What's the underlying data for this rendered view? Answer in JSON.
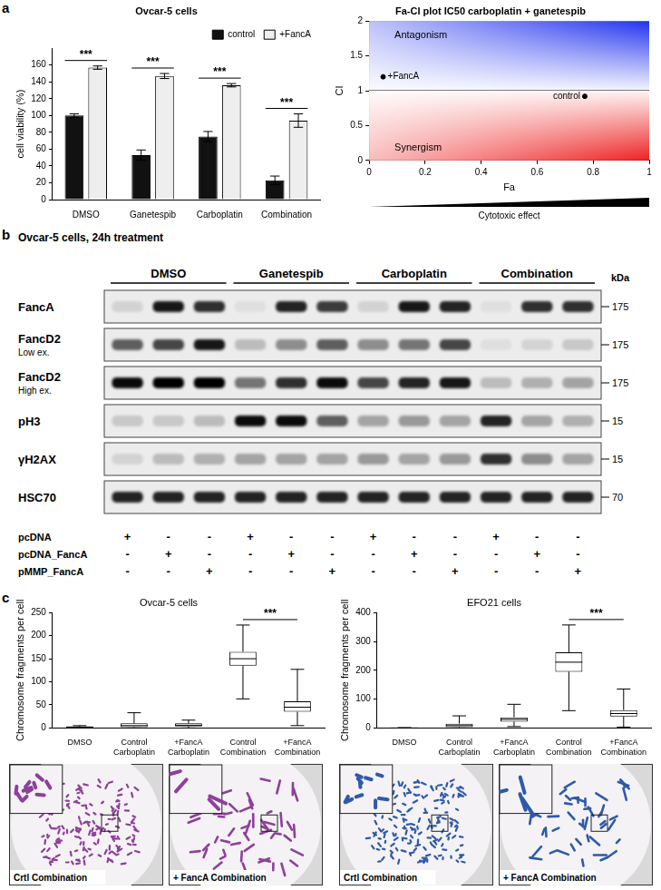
{
  "panel_labels": [
    "a",
    "b",
    "c"
  ],
  "chart_data": [
    {
      "type": "bar",
      "title": "Ovcar-5 cells",
      "ylabel": "cell viability (%)",
      "categories": [
        "DMSO",
        "Ganetespib",
        "Carboplatin",
        "Combination"
      ],
      "series": [
        {
          "name": "control",
          "color": "#111111",
          "values": [
            100,
            53,
            75,
            23
          ],
          "errors": [
            2,
            6,
            6,
            5
          ]
        },
        {
          "name": "+FancA",
          "color": "#eeeeee",
          "values": [
            157,
            147,
            136,
            94
          ],
          "errors": [
            2,
            3,
            2,
            8
          ]
        }
      ],
      "ylim": [
        0,
        180
      ],
      "yticks": [
        0,
        20,
        40,
        60,
        80,
        100,
        120,
        140,
        160
      ],
      "grid": false,
      "legend": "top-right",
      "annotations": [
        {
          "text": "***",
          "category": "DMSO"
        },
        {
          "text": "***",
          "category": "Ganetespib"
        },
        {
          "text": "***",
          "category": "Carboplatin"
        },
        {
          "text": "***",
          "category": "Combination"
        }
      ]
    },
    {
      "type": "scatter",
      "title": "Fa-CI plot IC50 carboplatin + ganetespib",
      "xlabel": "Fa",
      "ylabel": "CI",
      "xlim": [
        0,
        1
      ],
      "ylim": [
        0,
        2
      ],
      "xticks": [
        0,
        0.2,
        0.4,
        0.6,
        0.8,
        1
      ],
      "yticks": [
        0,
        0.5,
        1,
        1.5,
        2
      ],
      "grid": false,
      "series": [
        {
          "name": "+FancA",
          "color": "#000000",
          "marker": "circle",
          "x": [
            0.05
          ],
          "values": [
            1.2
          ]
        },
        {
          "name": "control",
          "color": "#000000",
          "marker": "circle",
          "x": [
            0.77
          ],
          "values": [
            0.92
          ]
        }
      ],
      "regions": [
        {
          "label": "Antagonism",
          "from": 1,
          "to": 2,
          "color": "#2233ee"
        },
        {
          "label": "Synergism",
          "from": 0,
          "to": 1,
          "color": "#ee2222"
        }
      ],
      "annotation": "Cytotoxic effect"
    },
    {
      "type": "box",
      "title": "Ovcar-5 cells",
      "ylabel": "Chromosome fragments per cell",
      "categories": [
        "DMSO",
        "Control Carboplatin",
        "+FancA Carboplatin",
        "Control Combination",
        "+FancA Combination"
      ],
      "boxes": [
        {
          "min": 0,
          "q1": 1,
          "median": 2,
          "q3": 3,
          "max": 5
        },
        {
          "min": 0,
          "q1": 2,
          "median": 5,
          "q3": 10,
          "max": 33
        },
        {
          "min": 0,
          "q1": 3,
          "median": 6,
          "q3": 10,
          "max": 17
        },
        {
          "min": 63,
          "q1": 135,
          "median": 150,
          "q3": 165,
          "max": 223
        },
        {
          "min": 5,
          "q1": 35,
          "median": 45,
          "q3": 58,
          "max": 127
        }
      ],
      "ylim": [
        0,
        250
      ],
      "yticks": [
        0,
        50,
        100,
        150,
        200,
        250
      ],
      "grid": false,
      "annotations": [
        {
          "text": "***",
          "from": "Control Combination",
          "to": "+FancA Combination"
        }
      ]
    },
    {
      "type": "box",
      "title": "EFO21 cells",
      "ylabel": "Chromosome fragments per cell",
      "categories": [
        "DMSO",
        "Control Carboplatin",
        "+FancA Carboplatin",
        "Control Combination",
        "+FancA Combination"
      ],
      "boxes": [
        {
          "min": 0,
          "q1": 0,
          "median": 0,
          "q3": 0,
          "max": 1
        },
        {
          "min": 0,
          "q1": 3,
          "median": 8,
          "q3": 15,
          "max": 42
        },
        {
          "min": 5,
          "q1": 22,
          "median": 30,
          "q3": 37,
          "max": 82
        },
        {
          "min": 60,
          "q1": 195,
          "median": 228,
          "q3": 262,
          "max": 357
        },
        {
          "min": 3,
          "q1": 40,
          "median": 50,
          "q3": 62,
          "max": 135
        }
      ],
      "ylim": [
        0,
        400
      ],
      "yticks": [
        0,
        100,
        200,
        300,
        400
      ],
      "grid": false,
      "annotations": [
        {
          "text": "***",
          "from": "Control Combination",
          "to": "+FancA Combination"
        }
      ]
    }
  ],
  "blot": {
    "title": "Ovcar-5 cells, 24h treatment",
    "unit": "kDa",
    "groups": [
      "DMSO",
      "Ganetespib",
      "Carboplatin",
      "Combination"
    ],
    "rows": [
      {
        "label": "FancA",
        "marker": 175,
        "intensity": [
          0.1,
          0.9,
          0.8,
          0.05,
          0.85,
          0.75,
          0.1,
          0.9,
          0.85,
          0.05,
          0.8,
          0.8
        ]
      },
      {
        "label": "FancD2",
        "sublabel": "Low ex.",
        "marker": 175,
        "intensity": [
          0.6,
          0.7,
          0.9,
          0.2,
          0.4,
          0.6,
          0.4,
          0.5,
          0.7,
          0.05,
          0.1,
          0.15
        ]
      },
      {
        "label": "FancD2",
        "sublabel": "High ex.",
        "marker": 175,
        "intensity": [
          0.95,
          1,
          1,
          0.5,
          0.8,
          0.95,
          0.7,
          0.85,
          0.9,
          0.2,
          0.25,
          0.3
        ]
      },
      {
        "label": "pH3",
        "marker": 15,
        "intensity": [
          0.15,
          0.15,
          0.2,
          0.95,
          0.95,
          0.6,
          0.3,
          0.35,
          0.3,
          0.85,
          0.3,
          0.25
        ]
      },
      {
        "label": "γH2AX",
        "marker": 15,
        "intensity": [
          0.1,
          0.2,
          0.25,
          0.3,
          0.3,
          0.3,
          0.35,
          0.3,
          0.35,
          0.8,
          0.4,
          0.3
        ]
      },
      {
        "label": "HSC70",
        "marker": 70,
        "intensity": [
          0.85,
          0.85,
          0.85,
          0.85,
          0.85,
          0.85,
          0.85,
          0.85,
          0.85,
          0.85,
          0.85,
          0.85
        ]
      }
    ],
    "plasmids": [
      {
        "label": "pcDNA",
        "signs": [
          "+",
          "-",
          "-",
          "+",
          "-",
          "-",
          "+",
          "-",
          "-",
          "+",
          "-",
          "-"
        ]
      },
      {
        "label": "pcDNA_FancA",
        "signs": [
          "-",
          "+",
          "-",
          "-",
          "+",
          "-",
          "-",
          "+",
          "-",
          "-",
          "+",
          "-"
        ]
      },
      {
        "label": "pMMP_FancA",
        "signs": [
          "-",
          "-",
          "+",
          "-",
          "-",
          "+",
          "-",
          "-",
          "+",
          "-",
          "-",
          "+"
        ]
      }
    ]
  },
  "micrographs": [
    {
      "label": "Crtl Combination",
      "color": "#8e3f9a"
    },
    {
      "label": "+ FancA Combination",
      "color": "#8e3f9a"
    },
    {
      "label": "Crtl Combination",
      "color": "#2f5aa8"
    },
    {
      "label": "+ FancA Combination",
      "color": "#2f5aa8"
    }
  ]
}
